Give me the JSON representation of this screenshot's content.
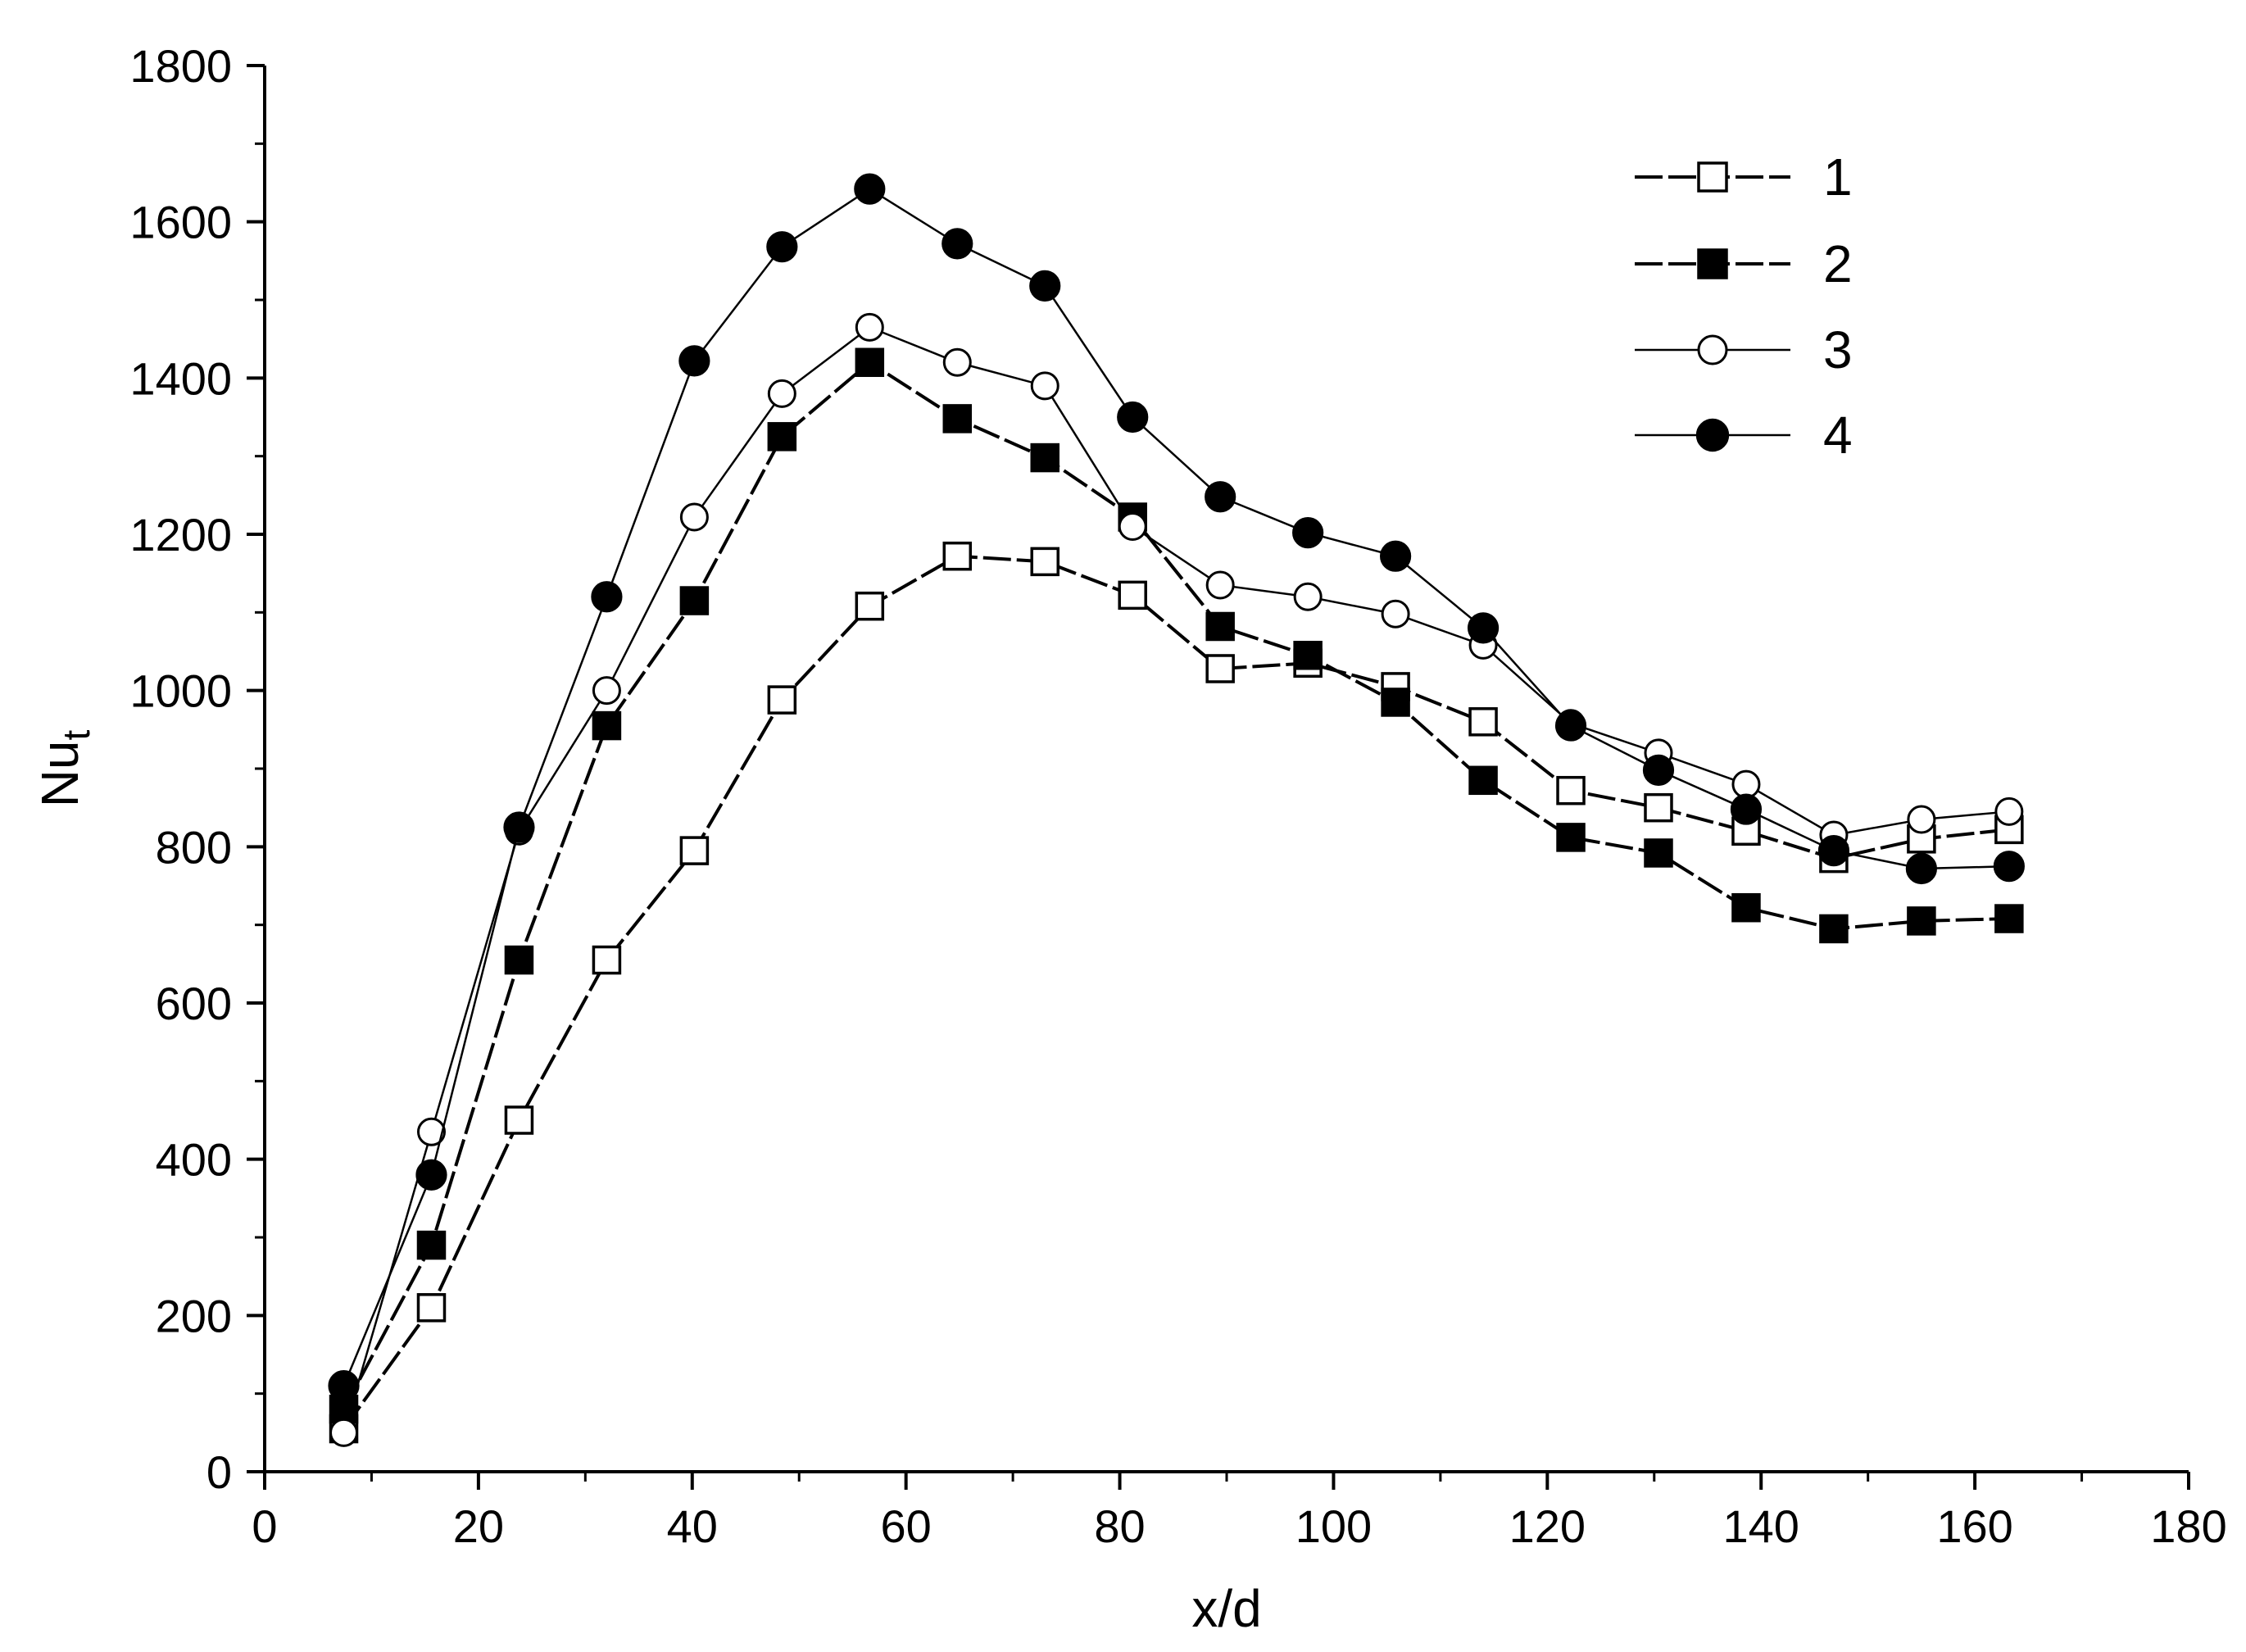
{
  "chart_data": {
    "type": "line",
    "title": "",
    "xlabel": "x/d",
    "ylabel_main": "Nu",
    "ylabel_sub": "t",
    "xlim": [
      0,
      180
    ],
    "ylim": [
      0,
      1800
    ],
    "x_ticks": [
      0,
      20,
      40,
      60,
      80,
      100,
      120,
      140,
      160,
      180
    ],
    "y_ticks": [
      0,
      200,
      400,
      600,
      800,
      1000,
      1200,
      1400,
      1600,
      1800
    ],
    "grid": false,
    "legend_position": "top-right",
    "x": [
      7.4,
      15.6,
      23.8,
      32.0,
      40.2,
      48.4,
      56.6,
      64.8,
      73.0,
      81.2,
      89.4,
      97.6,
      105.8,
      114.0,
      122.2,
      130.4,
      138.6,
      146.8,
      155.0,
      163.2
    ],
    "series": [
      {
        "name": "1",
        "marker": "square-open",
        "dashed": true,
        "values": [
          55,
          210,
          450,
          655,
          795,
          988,
          1108,
          1172,
          1165,
          1122,
          1028,
          1035,
          1005,
          960,
          872,
          850,
          820,
          785,
          810,
          822
        ]
      },
      {
        "name": "2",
        "marker": "square-filled",
        "dashed": true,
        "values": [
          80,
          290,
          655,
          955,
          1115,
          1325,
          1420,
          1348,
          1298,
          1222,
          1082,
          1045,
          985,
          885,
          812,
          792,
          722,
          695,
          705,
          708
        ]
      },
      {
        "name": "3",
        "marker": "circle-open",
        "dashed": false,
        "values": [
          50,
          435,
          820,
          1000,
          1222,
          1380,
          1465,
          1420,
          1390,
          1210,
          1135,
          1120,
          1098,
          1058,
          958,
          920,
          880,
          815,
          835,
          845
        ]
      },
      {
        "name": "4",
        "marker": "circle-filled",
        "dashed": false,
        "values": [
          110,
          380,
          825,
          1120,
          1422,
          1568,
          1642,
          1572,
          1518,
          1350,
          1248,
          1202,
          1172,
          1080,
          955,
          898,
          848,
          795,
          772,
          775
        ]
      }
    ]
  }
}
